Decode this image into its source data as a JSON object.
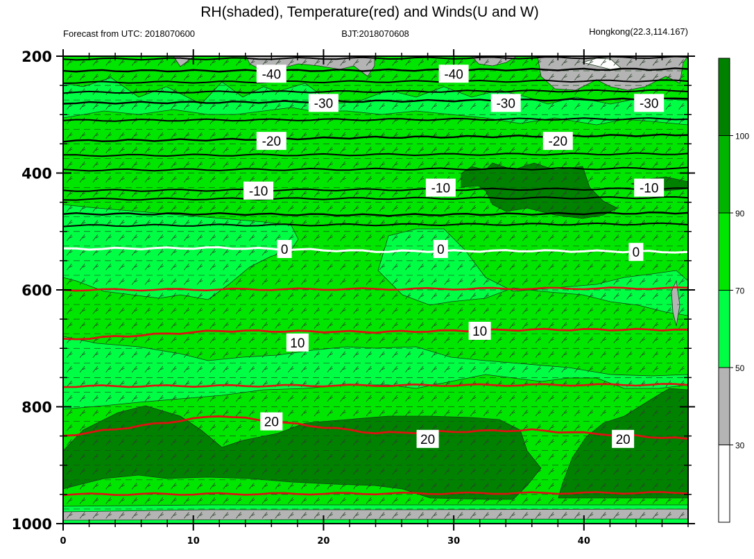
{
  "chart_data": {
    "type": "heatmap",
    "title": "RH(shaded), Temperature(red) and Winds(U and W)",
    "subtitle_left": "Forecast from UTC: 2018070600",
    "subtitle_center": "BJT:2018070608",
    "subtitle_right": "Hongkong(22.3,114.167)",
    "xlabel": "",
    "ylabel": "",
    "x_ticks": [
      0,
      10,
      20,
      30,
      40
    ],
    "y_ticks": [
      200,
      400,
      600,
      800,
      1000
    ],
    "xlim": [
      0,
      48
    ],
    "ylim": [
      200,
      1000
    ],
    "y_inverted": true,
    "colorbar": {
      "levels": [
        30,
        50,
        70,
        90,
        100
      ],
      "colors": [
        "#ffffff",
        "#b4b4b4",
        "#00ff44",
        "#00e600",
        "#00b400",
        "#008200"
      ],
      "placement": "right"
    },
    "rh_bands": [
      {
        "level": "50-70",
        "color": "#00ff44"
      },
      {
        "level": "70-90",
        "color": "#00e600"
      },
      {
        "level": "90-100",
        "color": "#00b400"
      },
      {
        "level": ">100",
        "color": "#008200"
      },
      {
        "level": "30-50",
        "color": "#b4b4b4"
      }
    ],
    "temperature_contours": [
      {
        "value": -40,
        "color": "#000000",
        "points": [
          [
            0,
            225
          ],
          [
            12,
            225
          ],
          [
            24,
            224
          ],
          [
            36,
            223
          ],
          [
            48,
            222
          ]
        ],
        "labels": [
          [
            16,
            230
          ],
          [
            30,
            230
          ]
        ]
      },
      {
        "value": -30,
        "color": "#000000",
        "points": [
          [
            0,
            280
          ],
          [
            12,
            279
          ],
          [
            24,
            277
          ],
          [
            36,
            275
          ],
          [
            48,
            273
          ]
        ],
        "labels": [
          [
            20,
            280
          ],
          [
            34,
            280
          ],
          [
            45,
            280
          ]
        ]
      },
      {
        "value": -20,
        "color": "#000000",
        "points": [
          [
            0,
            345
          ],
          [
            12,
            343
          ],
          [
            24,
            339
          ],
          [
            36,
            337
          ],
          [
            48,
            335
          ]
        ],
        "labels": [
          [
            16,
            345
          ],
          [
            38,
            345
          ]
        ]
      },
      {
        "value": -10,
        "color": "#000000",
        "points": [
          [
            0,
            470
          ],
          [
            12,
            470
          ],
          [
            24,
            472
          ],
          [
            36,
            470
          ],
          [
            48,
            468
          ]
        ],
        "labels": [
          [
            15,
            430
          ],
          [
            29,
            425
          ],
          [
            45,
            425
          ]
        ]
      },
      {
        "value": 0,
        "color": "#ffffff",
        "points": [
          [
            0,
            530
          ],
          [
            12,
            528
          ],
          [
            24,
            534
          ],
          [
            36,
            533
          ],
          [
            48,
            535
          ]
        ],
        "labels": [
          [
            17,
            530
          ],
          [
            29,
            530
          ],
          [
            44,
            535
          ]
        ]
      },
      {
        "value": 10,
        "color": "#dd1111",
        "points": [
          [
            0,
            685
          ],
          [
            12,
            670
          ],
          [
            24,
            672
          ],
          [
            36,
            668
          ],
          [
            48,
            668
          ]
        ],
        "labels": [
          [
            18,
            690
          ],
          [
            32,
            670
          ]
        ]
      },
      {
        "value": 20,
        "color": "#dd1111",
        "points": [
          [
            0,
            850
          ],
          [
            12,
            815
          ],
          [
            24,
            845
          ],
          [
            36,
            840
          ],
          [
            48,
            855
          ]
        ],
        "labels": [
          [
            16,
            825
          ],
          [
            28,
            855
          ],
          [
            43,
            855
          ]
        ]
      }
    ],
    "contour_label_texts": [
      "-40",
      "-40",
      "-30",
      "-30",
      "-30",
      "-20",
      "-20",
      "-10",
      "-10",
      "-10",
      "0",
      "0",
      "0",
      "10",
      "10",
      "20",
      "20",
      "20"
    ],
    "extra_isotherms_unlabeled": [
      {
        "color": "#000000",
        "pressures": [
          205,
          245,
          262,
          310,
          370,
          395,
          430,
          445,
          490
        ]
      },
      {
        "color": "#dd1111",
        "pressures": [
          600,
          765,
          950
        ]
      }
    ],
    "wind_barbs": true,
    "grid": "dashed horizontal"
  }
}
